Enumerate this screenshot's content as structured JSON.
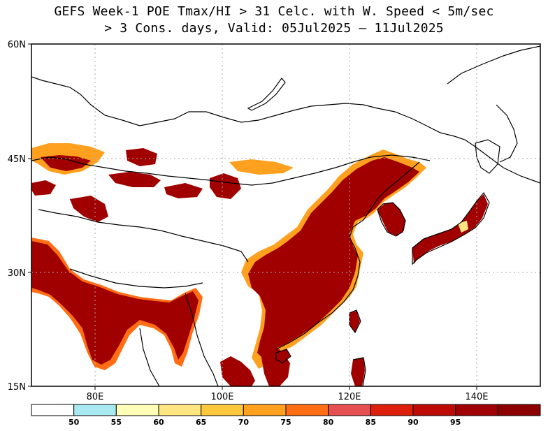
{
  "title": {
    "line1": "GEFS Week-1 POE Tmax/HI > 31 Celc. with W. Speed < 5m/sec",
    "line2": "> 3 Cons. days, Valid: 05Jul2025 – 11Jul2025"
  },
  "map": {
    "lat_labels": [
      "60N",
      "45N",
      "30N",
      "15N"
    ],
    "lon_labels": [
      "80E",
      "100E",
      "120E",
      "140E"
    ]
  },
  "colorbar": {
    "colors": [
      "#ffffff",
      "#a8e8f0",
      "#ffffb8",
      "#ffe680",
      "#ffc83c",
      "#ffa01e",
      "#ff6e14",
      "#e65050",
      "#dc1e0a",
      "#be0a05",
      "#a00000",
      "#8c0000"
    ],
    "labels": [
      "50",
      "55",
      "60",
      "65",
      "70",
      "75",
      "80",
      "85",
      "90",
      "95"
    ]
  }
}
